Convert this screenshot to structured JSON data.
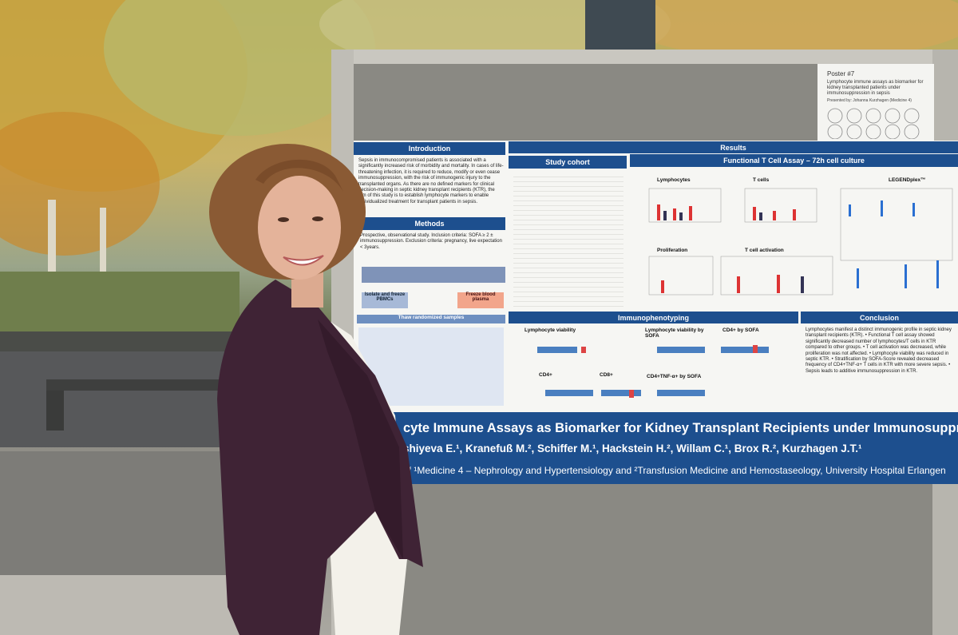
{
  "poster_card": {
    "number": "Poster #7",
    "title": "Lymphocyte immune assays as biomarker for kidney transplanted patients under immunosuppression in sepsis",
    "presenter": "Presented by: Johanna Kurzhagen (Medicine 4)"
  },
  "poster": {
    "sections": {
      "introduction": "Introduction",
      "methods": "Methods",
      "results": "Results",
      "study_cohort": "Study cohort",
      "functional": "Functional T Cell Assay – 72h cell culture",
      "immunophenotyping": "Immunophenotyping",
      "conclusion": "Conclusion"
    },
    "intro_text": "Sepsis in immunocompromised patients is associated with a significantly increased risk of morbidity and mortality. In cases of life-threatening infection, it is required to reduce, modify or even cease immunosuppression, with the risk of immunogenic injury to the transplanted organs. As there are no defined markers for clinical decision-making in septic kidney transplant recipients (KTR), the aim of this study is to establish lymphocyte markers to enable individualized treatment for transplant patients in sepsis.",
    "methods_text": "Prospective, observational study. Inclusion criteria: SOFA ≥ 2 ± immunosuppression. Exclusion criteria: pregnancy, live expectation < 3years.",
    "methods_boxes": [
      "Isolate and freeze PBMCs",
      "Freeze blood plasma",
      "Thaw randomized samples"
    ],
    "panels": [
      "Lymphocytes",
      "T cells",
      "LEGENDplex™",
      "Proliferation",
      "T cell activation",
      "Lymphocyte viability",
      "Lymphocyte viability by SOFA",
      "CD4+ by SOFA",
      "CD4+",
      "CD8+",
      "CD4+TNF-α+ by SOFA"
    ],
    "conclusion_text": "Lymphocytes manifest a distinct immunogenic profile in septic kidney transplant recipients (KTR). • Functional T cell assay showed significantly decreased number of lymphocytes/T cells in KTR compared to other groups. • T cell activation was decreased, while proliferation was not affected. • Lymphocyte viability was reduced in septic KTR. • Stratification by SOFA-Score revealed decreased frequency of CD4+TNF-α+ T cells in KTR with more severe sepsis. • Sepsis leads to additive immunosuppression in KTR.",
    "title": "cyte Immune Assays as Biomarker for Kidney Transplant Recipients under Immunosuppression in Sepsis",
    "authors": "shiyeva E.¹, Kranefuß M.², Schiffer M.¹, Hackstein H.², Willam C.¹, Brox R.², Kurzhagen J.T.¹",
    "affiliation": "of ¹Medicine 4 – Nephrology and Hypertensiology and ²Transfusion Medicine and Hemostaseology, University Hospital Erlangen"
  }
}
